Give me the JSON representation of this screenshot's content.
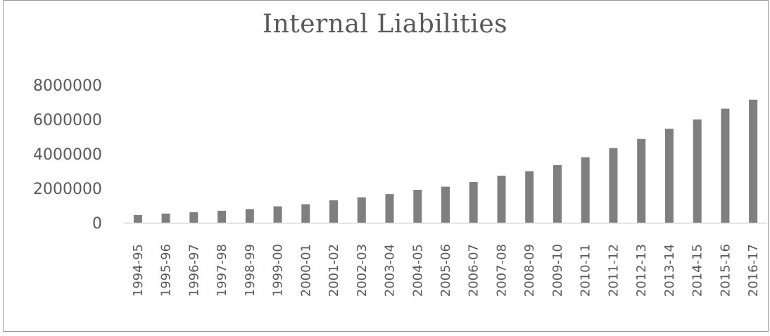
{
  "chart_data": {
    "type": "bar",
    "title": "Internal Liabilities",
    "xlabel": "",
    "ylabel": "",
    "ylim": [
      0,
      8000000
    ],
    "yticks": [
      0,
      2000000,
      4000000,
      6000000,
      8000000
    ],
    "ytick_labels": [
      "0",
      "2000000",
      "4000000",
      "6000000",
      "8000000"
    ],
    "grid": false,
    "legend": "none",
    "bar_color": "#7f7f7f",
    "axis_color": "#d9d9d9",
    "categories": [
      "1994-95",
      "1995-96",
      "1996-97",
      "1997-98",
      "1998-99",
      "1999-00",
      "2000-01",
      "2001-02",
      "2002-03",
      "2003-04",
      "2004-05",
      "2005-06",
      "2006-07",
      "2007-08",
      "2008-09",
      "2009-10",
      "2010-11",
      "2011-12",
      "2012-13",
      "2013-14",
      "2014-15",
      "2015-16",
      "2016-17"
    ],
    "values": [
      450000,
      540000,
      620000,
      700000,
      800000,
      960000,
      1080000,
      1310000,
      1480000,
      1670000,
      1920000,
      2100000,
      2370000,
      2740000,
      3000000,
      3350000,
      3810000,
      4340000,
      4870000,
      5460000,
      6000000,
      6630000,
      7150000
    ]
  }
}
